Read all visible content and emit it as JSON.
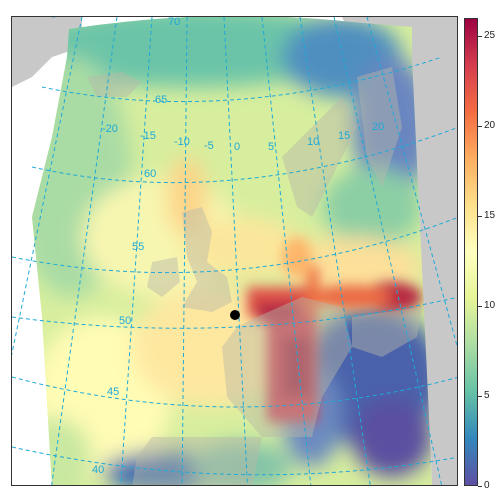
{
  "colorbar": {
    "min": 0,
    "max": 26,
    "ticks": [
      "0",
      "5",
      "10",
      "15",
      "20",
      "25"
    ],
    "tick_values": [
      0,
      5,
      10,
      15,
      20,
      25
    ],
    "colors": [
      "#5e4fa2",
      "#3288bd",
      "#66c2a5",
      "#abdda4",
      "#e6f598",
      "#ffffbf",
      "#fee08b",
      "#fdae61",
      "#f46d43",
      "#d53e4f",
      "#9e0142"
    ]
  },
  "graticule": {
    "longitude_labels": [
      "-20",
      "-15",
      "-10",
      "-5",
      "0",
      "5",
      "10",
      "15",
      "20"
    ],
    "latitude_labels": [
      "40",
      "45",
      "50",
      "55",
      "60",
      "65",
      "70"
    ],
    "line_color": "#1fa9d8",
    "land_color": "#c8c8c8"
  },
  "marker": {
    "label": "point-of-interest",
    "color": "#000000"
  }
}
